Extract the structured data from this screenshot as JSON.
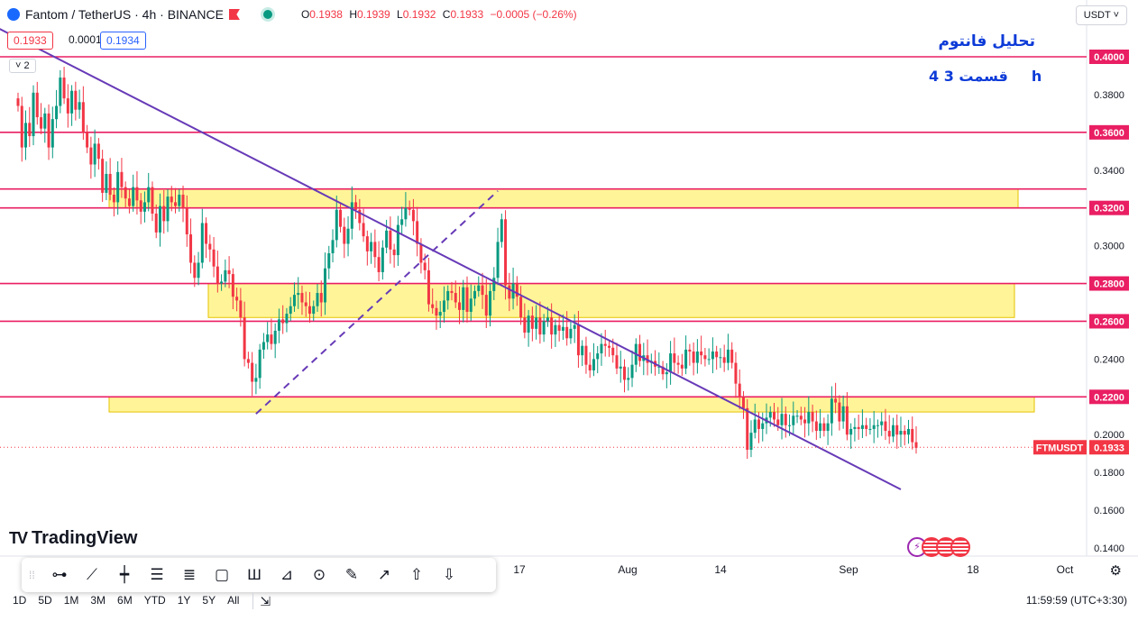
{
  "header": {
    "symbol": "Fantom / TetherUS · 4h · BINANCE",
    "ohlc": {
      "o_label": "O",
      "o": "0.1938",
      "h_label": "H",
      "h": "0.1939",
      "l_label": "L",
      "l": "0.1932",
      "c_label": "C",
      "c": "0.1933",
      "change": "−0.0005 (−0.26%)"
    }
  },
  "price_boxes": {
    "sell": "0.1933",
    "spread": "0.0001",
    "buy": "0.1934"
  },
  "indicator_toggle": "2",
  "currency_select": "USDT",
  "annotation": {
    "title": "تحلیل فانتوم",
    "subtitle_part": "قسمت 3",
    "timeframe": "4h"
  },
  "branding": {
    "logo_text": "TradingView"
  },
  "toolbar": {
    "tools": [
      "cursor-icon",
      "trendline-icon",
      "vertical-line-icon",
      "parallel-channel-icon",
      "fib-icon",
      "rectangle-icon",
      "pitchfork-icon",
      "triangle-icon",
      "circle-icon",
      "brush-icon",
      "arrow-icon",
      "arrow-up-icon",
      "arrow-down-icon"
    ]
  },
  "time_ranges": [
    "1D",
    "5D",
    "1M",
    "3M",
    "6M",
    "YTD",
    "1Y",
    "5Y",
    "All"
  ],
  "clock": "11:59:59 (UTC+3:30)",
  "colors": {
    "up": "#089981",
    "down": "#f23645",
    "level_line": "#e91e63",
    "zone_fill": "#fff176",
    "trendline": "#673ab7",
    "annotation": "#0d3bd8"
  },
  "chart_data": {
    "type": "candlestick",
    "symbol_label": "FTMUSDT",
    "last_price": 0.1933,
    "y_axis": {
      "ylim": [
        0.13,
        0.43
      ],
      "ticks": [
        "0.1400",
        "0.1600",
        "0.1800",
        "0.2000",
        "0.2200",
        "0.2400",
        "0.2600",
        "0.2800",
        "0.3000",
        "0.3200",
        "0.3400",
        "0.3600",
        "0.3800",
        "0.4000"
      ]
    },
    "x_axis": {
      "ticks": [
        "17",
        "Aug",
        "14",
        "Sep",
        "18",
        "Oct"
      ]
    },
    "horizontal_levels": [
      0.4,
      0.36,
      0.33,
      0.32,
      0.28,
      0.26,
      0.22
    ],
    "highlighted_levels": [
      "0.4000",
      "0.3600",
      "0.3300",
      "0.3200",
      "0.2800",
      "0.2600",
      "0.2200"
    ],
    "zones": [
      {
        "from": 0.32,
        "to": 0.33
      },
      {
        "from": 0.262,
        "to": 0.28
      },
      {
        "from": 0.212,
        "to": 0.22
      }
    ],
    "trendlines": [
      {
        "style": "solid",
        "from": {
          "bar": -58,
          "price": 0.47
        },
        "to": {
          "bar": 230,
          "price": 0.171
        }
      },
      {
        "style": "dashed",
        "from": {
          "bar": 62,
          "price": 0.211
        },
        "to": {
          "bar": 125,
          "price": 0.329
        }
      }
    ],
    "closes": [
      0.374,
      0.352,
      0.365,
      0.358,
      0.381,
      0.368,
      0.362,
      0.37,
      0.352,
      0.367,
      0.374,
      0.389,
      0.378,
      0.37,
      0.382,
      0.372,
      0.376,
      0.36,
      0.352,
      0.343,
      0.354,
      0.346,
      0.328,
      0.338,
      0.327,
      0.323,
      0.339,
      0.331,
      0.325,
      0.321,
      0.331,
      0.324,
      0.318,
      0.323,
      0.331,
      0.317,
      0.307,
      0.321,
      0.313,
      0.326,
      0.323,
      0.321,
      0.327,
      0.32,
      0.306,
      0.291,
      0.283,
      0.291,
      0.312,
      0.301,
      0.298,
      0.289,
      0.28,
      0.281,
      0.287,
      0.285,
      0.273,
      0.271,
      0.262,
      0.24,
      0.238,
      0.228,
      0.23,
      0.245,
      0.249,
      0.253,
      0.248,
      0.255,
      0.261,
      0.259,
      0.264,
      0.268,
      0.274,
      0.275,
      0.27,
      0.268,
      0.264,
      0.268,
      0.275,
      0.27,
      0.288,
      0.296,
      0.303,
      0.319,
      0.31,
      0.301,
      0.309,
      0.323,
      0.319,
      0.312,
      0.305,
      0.297,
      0.302,
      0.294,
      0.286,
      0.299,
      0.308,
      0.298,
      0.295,
      0.311,
      0.314,
      0.32,
      0.319,
      0.313,
      0.301,
      0.291,
      0.287,
      0.269,
      0.267,
      0.263,
      0.265,
      0.271,
      0.276,
      0.275,
      0.27,
      0.266,
      0.278,
      0.265,
      0.272,
      0.276,
      0.279,
      0.274,
      0.263,
      0.276,
      0.283,
      0.302,
      0.314,
      0.279,
      0.272,
      0.28,
      0.273,
      0.262,
      0.254,
      0.263,
      0.256,
      0.262,
      0.253,
      0.26,
      0.262,
      0.253,
      0.258,
      0.255,
      0.257,
      0.251,
      0.256,
      0.258,
      0.242,
      0.247,
      0.237,
      0.234,
      0.24,
      0.243,
      0.248,
      0.247,
      0.246,
      0.242,
      0.235,
      0.236,
      0.229,
      0.23,
      0.237,
      0.248,
      0.239,
      0.242,
      0.238,
      0.239,
      0.236,
      0.236,
      0.232,
      0.233,
      0.243,
      0.238,
      0.237,
      0.235,
      0.245,
      0.244,
      0.238,
      0.244,
      0.242,
      0.24,
      0.24,
      0.244,
      0.241,
      0.241,
      0.238,
      0.245,
      0.238,
      0.227,
      0.22,
      0.214,
      0.192,
      0.201,
      0.208,
      0.203,
      0.206,
      0.209,
      0.212,
      0.208,
      0.205,
      0.211,
      0.205,
      0.205,
      0.21,
      0.21,
      0.208,
      0.206,
      0.212,
      0.207,
      0.202,
      0.206,
      0.202,
      0.206,
      0.219,
      0.217,
      0.207,
      0.215,
      0.2,
      0.203,
      0.204,
      0.203,
      0.205,
      0.203,
      0.203,
      0.205,
      0.205,
      0.207,
      0.202,
      0.199,
      0.205,
      0.2,
      0.202,
      0.2,
      0.203,
      0.196,
      0.193
    ]
  }
}
